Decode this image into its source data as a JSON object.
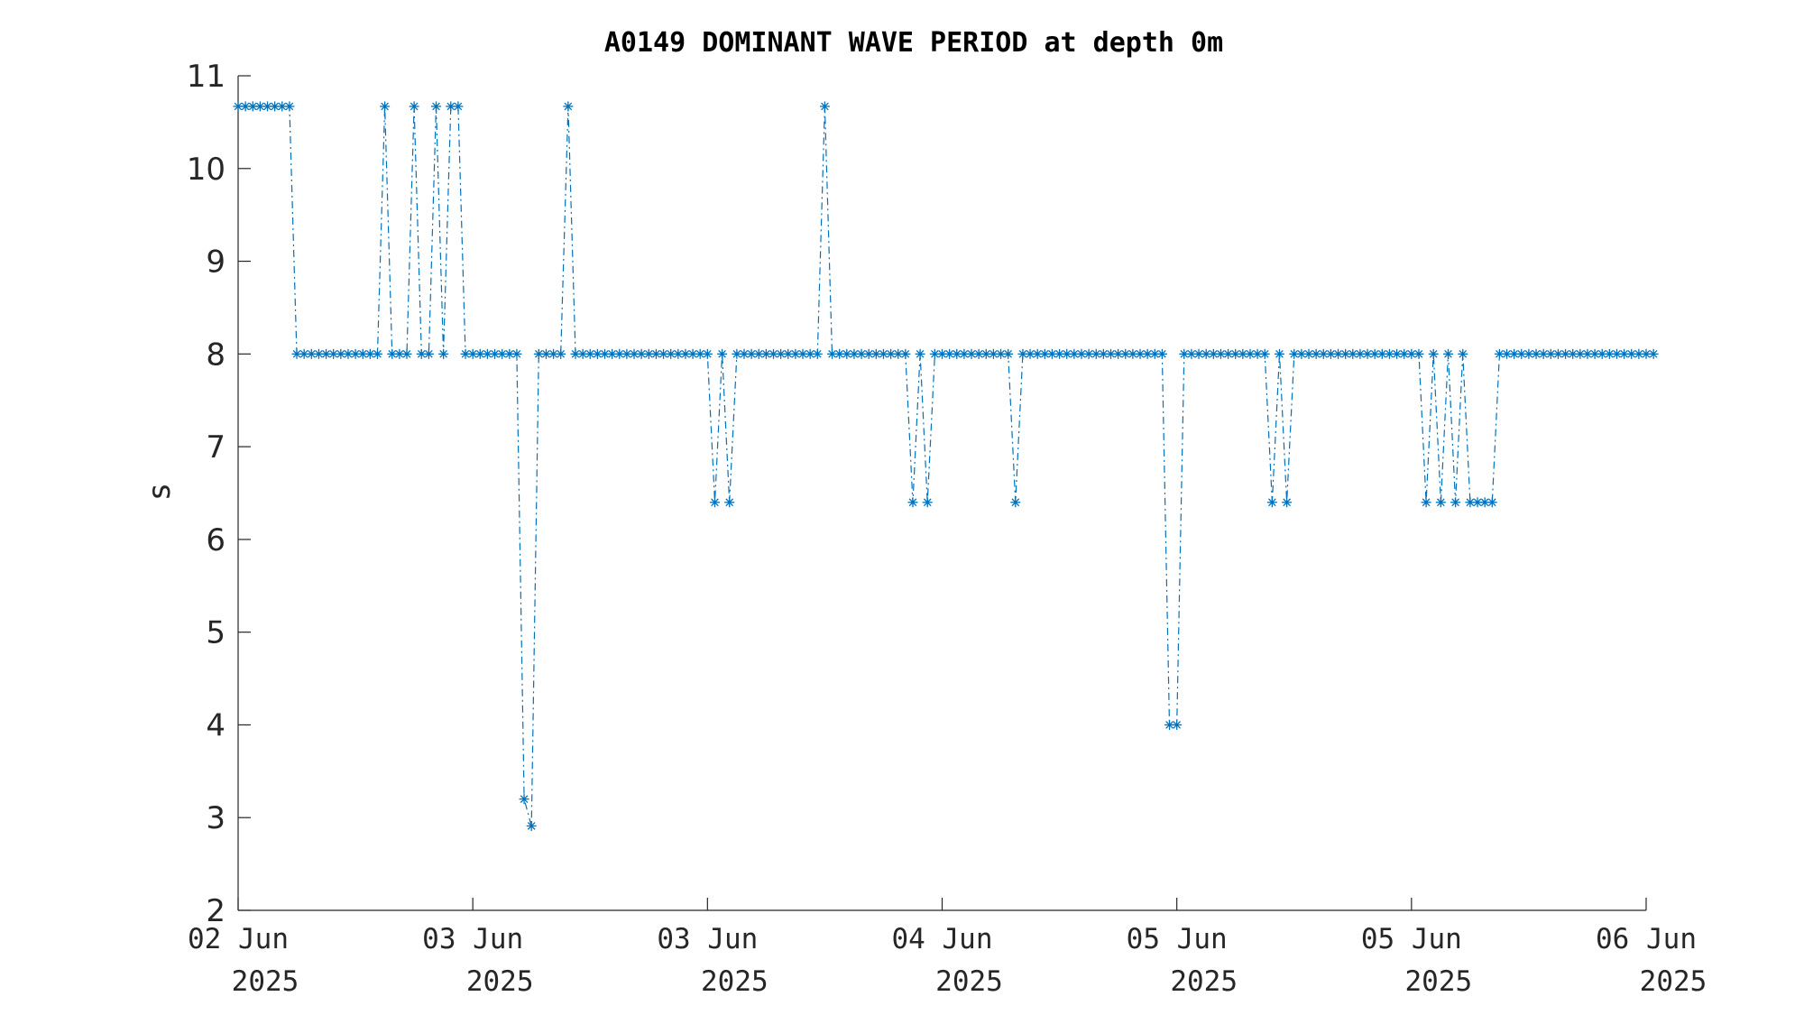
{
  "chart_data": {
    "type": "line",
    "title": "A0149 DOMINANT WAVE PERIOD at depth 0m",
    "xlabel": "",
    "ylabel": "s",
    "ylim": [
      2,
      11
    ],
    "yticks": [
      2,
      3,
      4,
      5,
      6,
      7,
      8,
      9,
      10,
      11
    ],
    "xlim": [
      "2025-06-02T00:00",
      "2025-06-06T00:00"
    ],
    "xticks": [
      {
        "line1": "02 Jun",
        "line2": "2025"
      },
      {
        "line1": "03 Jun",
        "line2": "2025"
      },
      {
        "line1": "03 Jun",
        "line2": "2025"
      },
      {
        "line1": "04 Jun",
        "line2": "2025"
      },
      {
        "line1": "05 Jun",
        "line2": "2025"
      },
      {
        "line1": "05 Jun",
        "line2": "2025"
      },
      {
        "line1": "06 Jun",
        "line2": "2025"
      }
    ],
    "grid": false,
    "legend": "none",
    "line_style": "dash-dot",
    "marker": "asterisk",
    "color": "#0072BD",
    "series": [
      {
        "x_start": "2025-06-02T00:00",
        "interval_minutes": 30,
        "values": [
          10.67,
          10.67,
          10.67,
          10.67,
          10.67,
          10.67,
          10.67,
          10.67,
          8,
          8,
          8,
          8,
          8,
          8,
          8,
          8,
          8,
          8,
          8,
          8,
          10.67,
          8,
          8,
          8,
          10.67,
          8,
          8,
          10.67,
          8,
          10.67,
          10.67,
          8,
          8,
          8,
          8,
          8,
          8,
          8,
          8,
          3.2,
          2.91,
          8,
          8,
          8,
          8,
          10.67,
          8,
          8,
          8,
          8,
          8,
          8,
          8,
          8,
          8,
          8,
          8,
          8,
          8,
          8,
          8,
          8,
          8,
          8,
          8,
          6.4,
          8,
          6.4,
          8,
          8,
          8,
          8,
          8,
          8,
          8,
          8,
          8,
          8,
          8,
          8,
          10.67,
          8,
          8,
          8,
          8,
          8,
          8,
          8,
          8,
          8,
          8,
          8,
          6.4,
          8,
          6.4,
          8,
          8,
          8,
          8,
          8,
          8,
          8,
          8,
          8,
          8,
          8,
          6.4,
          8,
          8,
          8,
          8,
          8,
          8,
          8,
          8,
          8,
          8,
          8,
          8,
          8,
          8,
          8,
          8,
          8,
          8,
          8,
          8,
          4,
          4,
          8,
          8,
          8,
          8,
          8,
          8,
          8,
          8,
          8,
          8,
          8,
          8,
          6.4,
          8,
          6.4,
          8,
          8,
          8,
          8,
          8,
          8,
          8,
          8,
          8,
          8,
          8,
          8,
          8,
          8,
          8,
          8,
          8,
          8,
          6.4,
          8,
          6.4,
          8,
          6.4,
          8,
          6.4,
          6.4,
          6.4,
          6.4,
          8,
          8,
          8,
          8,
          8,
          8,
          8,
          8,
          8,
          8,
          8,
          8,
          8,
          8,
          8,
          8,
          8,
          8,
          8,
          8,
          8,
          8
        ]
      }
    ]
  }
}
